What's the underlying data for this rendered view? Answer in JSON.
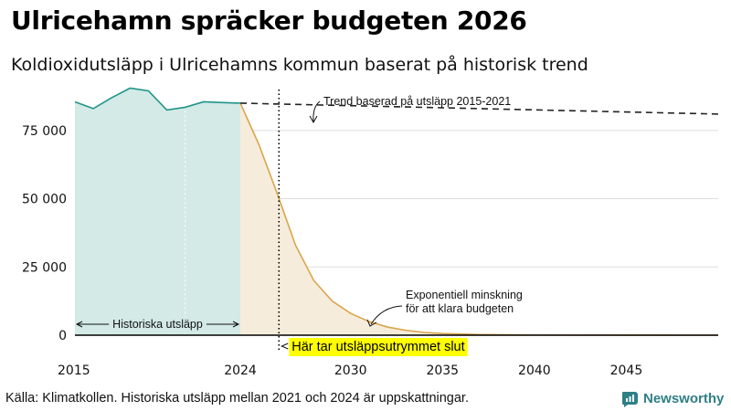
{
  "title": "Ulricehamn spräcker budgeten 2026",
  "subtitle": "Koldioxidutsläpp i Ulricehamns kommun baserat på historisk trend",
  "footer": "Källa: Klimatkollen. Historiska utsläpp mellan 2021 och 2024 är uppskattningar.",
  "brand": {
    "name": "Newsworthy",
    "icon": "newsworthy-logo-icon",
    "color": "#2f7f86"
  },
  "annotations": {
    "trend": "Trend baserad på utsläpp 2015-2021",
    "exponential_line1": "Exponentiell minskning",
    "exponential_line2": "för att klara budgeten",
    "historical": "Historiska utsläpp",
    "budget_end": "Här tar utsläppsutrymmet slut"
  },
  "colors": {
    "historical_line": "#1f9488",
    "historical_fill": "#d3eae6",
    "reduction_line": "#d9a54a",
    "reduction_fill": "#f6ecdb",
    "trend_line": "#222222",
    "highlight": "#ffff00",
    "grid": "#dddddd"
  },
  "chart_data": {
    "type": "line",
    "xlim": [
      2015,
      2050
    ],
    "ylim": [
      0,
      90000
    ],
    "xticks": [
      2015,
      2024,
      2030,
      2035,
      2040,
      2045
    ],
    "yticks": [
      0,
      25000,
      50000,
      75000
    ],
    "ytick_labels": [
      "0",
      "25 000",
      "50 000",
      "75 000"
    ],
    "grid": "horizontal",
    "budget_end_year": 2026.1,
    "series": [
      {
        "name": "Historiska utsläpp",
        "style": "area",
        "x": [
          2015,
          2016,
          2017,
          2018,
          2019,
          2020,
          2021,
          2022,
          2023,
          2024
        ],
        "y": [
          85500,
          83000,
          87000,
          90500,
          89500,
          82500,
          83500,
          85500,
          85200,
          85000
        ]
      },
      {
        "name": "Trend baserad på utsläpp 2015-2021",
        "style": "dashed",
        "x": [
          2024,
          2050
        ],
        "y": [
          85000,
          81000
        ]
      },
      {
        "name": "Exponentiell minskning för att klara budgeten",
        "style": "area",
        "x": [
          2024,
          2025,
          2026,
          2027,
          2028,
          2029,
          2030,
          2031,
          2032,
          2033,
          2034,
          2035,
          2037,
          2040,
          2045,
          2050
        ],
        "y": [
          85000,
          70000,
          52000,
          33000,
          20000,
          12500,
          8000,
          5000,
          3000,
          1800,
          1000,
          600,
          250,
          80,
          10,
          0
        ]
      }
    ]
  }
}
